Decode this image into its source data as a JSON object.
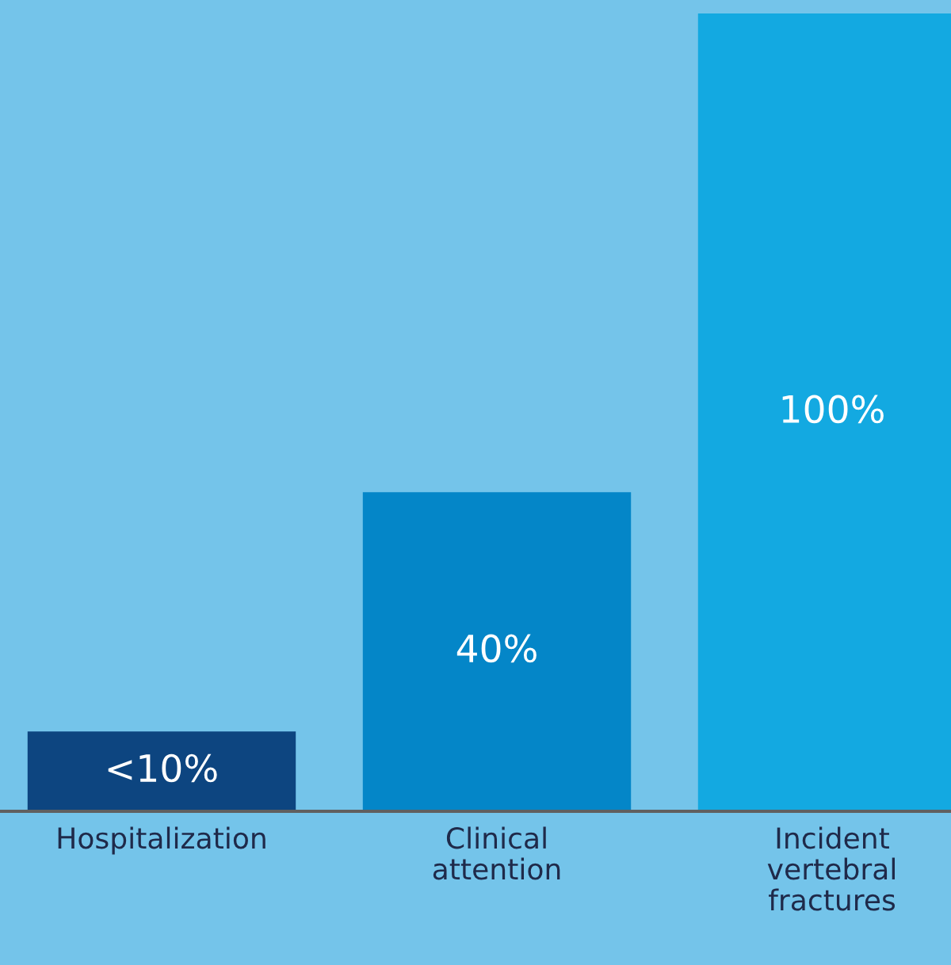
{
  "chart_data": {
    "type": "bar",
    "categories": [
      "Hospitalization",
      "Clinical\nattention",
      "Incident\nvertebral\nfractures"
    ],
    "values": [
      10,
      40,
      100
    ],
    "value_labels": [
      "<10%",
      "40%",
      "100%"
    ],
    "colors": [
      "#0d4580",
      "#0486c8",
      "#13a9e1"
    ],
    "grid": false,
    "legend": false
  }
}
